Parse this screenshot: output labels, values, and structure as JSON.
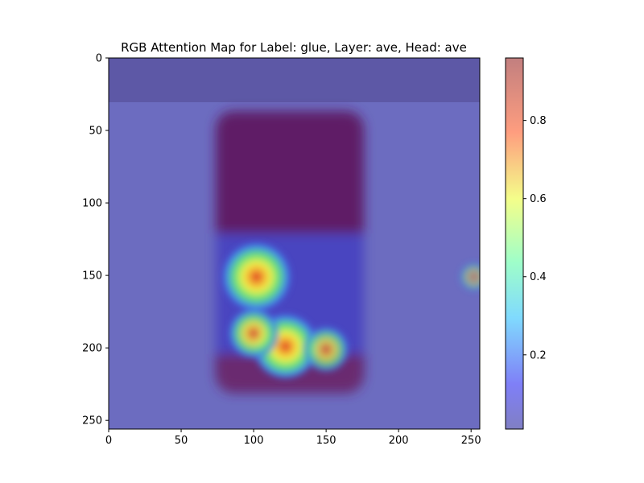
{
  "chart_data": {
    "type": "heatmap",
    "title": "RGB Attention Map for Label: glue, Layer: ave, Head: ave",
    "xlabel": "",
    "ylabel": "",
    "xlim": [
      0,
      256
    ],
    "ylim": [
      256,
      0
    ],
    "x_ticks": [
      0,
      50,
      100,
      150,
      200,
      250
    ],
    "y_ticks": [
      0,
      50,
      100,
      150,
      200,
      250
    ],
    "colorbar": {
      "range": [
        0.01,
        0.96
      ],
      "ticks": [
        0.2,
        0.4,
        0.6,
        0.8
      ],
      "colormap": "jet",
      "alpha": 0.5
    },
    "background": {
      "wall_color": "#6c6cc0",
      "top_band_color": "#5d58a6",
      "can_body_color": "#5e1e66",
      "can_label_color": "#4a45c0"
    },
    "hotspots": [
      {
        "x": 102,
        "y": 151,
        "value": 0.96
      },
      {
        "x": 122,
        "y": 199,
        "value": 0.88
      },
      {
        "x": 100,
        "y": 190,
        "value": 0.55
      },
      {
        "x": 150,
        "y": 201,
        "value": 0.45
      },
      {
        "x": 252,
        "y": 151,
        "value": 0.12
      }
    ]
  }
}
